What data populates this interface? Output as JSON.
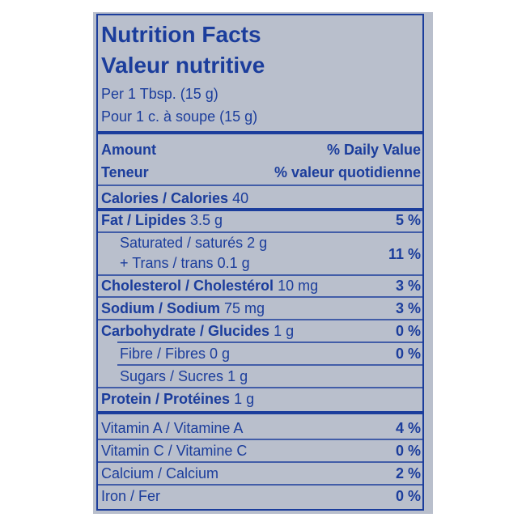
{
  "title": {
    "en": "Nutrition Facts",
    "fr": "Valeur nutritive"
  },
  "serving": {
    "en": "Per 1 Tbsp. (15 g)",
    "fr": "Pour 1 c. à soupe (15 g)"
  },
  "header": {
    "amount": "Amount",
    "daily_value": "% Daily Value",
    "amount_fr": "Teneur",
    "daily_value_fr": "% valeur quotidienne"
  },
  "calories": {
    "label": "Calories / Calories",
    "amount": "40"
  },
  "nutrients": [
    {
      "label": "Fat / Lipides",
      "amount": "3.5 g",
      "dv": "5 %"
    },
    {
      "label": "Saturated / saturés",
      "amount": "2 g",
      "dv": "11 %"
    },
    {
      "label": "+ Trans / trans",
      "amount": "0.1 g"
    },
    {
      "label": "Cholesterol / Cholestérol",
      "amount": "10 mg",
      "dv": "3 %"
    },
    {
      "label": "Sodium / Sodium",
      "amount": "75 mg",
      "dv": "3 %"
    },
    {
      "label": "Carbohydrate / Glucides",
      "amount": "1 g",
      "dv": "0 %"
    },
    {
      "label": "Fibre / Fibres",
      "amount": "0 g",
      "dv": "0 %"
    },
    {
      "label": "Sugars / Sucres",
      "amount": "1 g"
    },
    {
      "label": "Protein / Protéines",
      "amount": "1 g"
    }
  ],
  "vitamins": [
    {
      "label": "Vitamin A / Vitamine A",
      "dv": "4 %"
    },
    {
      "label": "Vitamin C / Vitamine C",
      "dv": "0 %"
    },
    {
      "label": "Calcium / Calcium",
      "dv": "2 %"
    },
    {
      "label": "Iron / Fer",
      "dv": "0 %"
    }
  ]
}
